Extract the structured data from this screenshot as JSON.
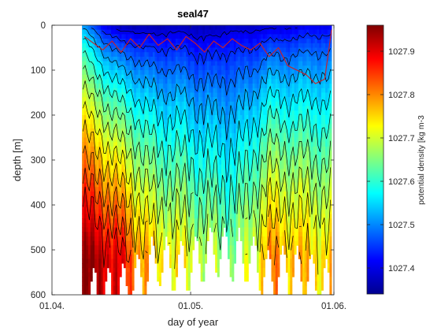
{
  "chart_data": {
    "type": "heatmap",
    "title": "seal47",
    "xlabel": "day of year",
    "ylabel": "depth [m]",
    "colorbar_label": "potential density [kg m-3",
    "x_ticks": [
      "01.04.",
      "01.05.",
      "01.06."
    ],
    "x_tick_days": [
      91,
      121,
      152
    ],
    "xlim_days": [
      91,
      152
    ],
    "data_range_days": [
      97.5,
      151.5
    ],
    "y_ticks": [
      0,
      100,
      200,
      300,
      400,
      500,
      600
    ],
    "ylim": [
      600,
      0
    ],
    "y_reversed": true,
    "clim": [
      1027.34,
      1027.96
    ],
    "colorbar_ticks": [
      1027.4,
      1027.5,
      1027.6,
      1027.7,
      1027.8,
      1027.9
    ],
    "colorbar_tick_labels": [
      "1027.4",
      "1027.5",
      "1027.6",
      "1027.7",
      "1027.8",
      "1027.9"
    ],
    "colormap": "jet",
    "contour_color": "#000000",
    "mixed_layer_line_color": "#d21e1e",
    "density_profile_anchors": [
      {
        "day": 98,
        "surface": 1027.5,
        "deep": 1027.95,
        "max_depth": 600
      },
      {
        "day": 102,
        "surface": 1027.4,
        "deep": 1027.93,
        "max_depth": 600
      },
      {
        "day": 106,
        "surface": 1027.36,
        "deep": 1027.88,
        "max_depth": 590
      },
      {
        "day": 110,
        "surface": 1027.36,
        "deep": 1027.8,
        "max_depth": 560
      },
      {
        "day": 114,
        "surface": 1027.36,
        "deep": 1027.74,
        "max_depth": 520
      },
      {
        "day": 118,
        "surface": 1027.37,
        "deep": 1027.73,
        "max_depth": 540
      },
      {
        "day": 122,
        "surface": 1027.36,
        "deep": 1027.7,
        "max_depth": 530
      },
      {
        "day": 126,
        "surface": 1027.36,
        "deep": 1027.68,
        "max_depth": 500
      },
      {
        "day": 130,
        "surface": 1027.38,
        "deep": 1027.66,
        "max_depth": 510
      },
      {
        "day": 134,
        "surface": 1027.37,
        "deep": 1027.7,
        "max_depth": 520
      },
      {
        "day": 138,
        "surface": 1027.38,
        "deep": 1027.8,
        "max_depth": 560
      },
      {
        "day": 142,
        "surface": 1027.38,
        "deep": 1027.78,
        "max_depth": 540
      },
      {
        "day": 146,
        "surface": 1027.4,
        "deep": 1027.76,
        "max_depth": 560
      },
      {
        "day": 150,
        "surface": 1027.4,
        "deep": 1027.75,
        "max_depth": 580
      }
    ],
    "mixed_layer_depth": [
      [
        98,
        25
      ],
      [
        100,
        40
      ],
      [
        102,
        55
      ],
      [
        104,
        35
      ],
      [
        106,
        60
      ],
      [
        108,
        30
      ],
      [
        110,
        50
      ],
      [
        112,
        20
      ],
      [
        114,
        45
      ],
      [
        116,
        30
      ],
      [
        118,
        55
      ],
      [
        120,
        25
      ],
      [
        122,
        40
      ],
      [
        124,
        60
      ],
      [
        126,
        35
      ],
      [
        128,
        50
      ],
      [
        130,
        30
      ],
      [
        132,
        45
      ],
      [
        134,
        55
      ],
      [
        136,
        40
      ],
      [
        138,
        70
      ],
      [
        140,
        50
      ],
      [
        142,
        90
      ],
      [
        144,
        100
      ],
      [
        146,
        110
      ],
      [
        148,
        130
      ],
      [
        150,
        120
      ],
      [
        151.5,
        10
      ]
    ]
  }
}
